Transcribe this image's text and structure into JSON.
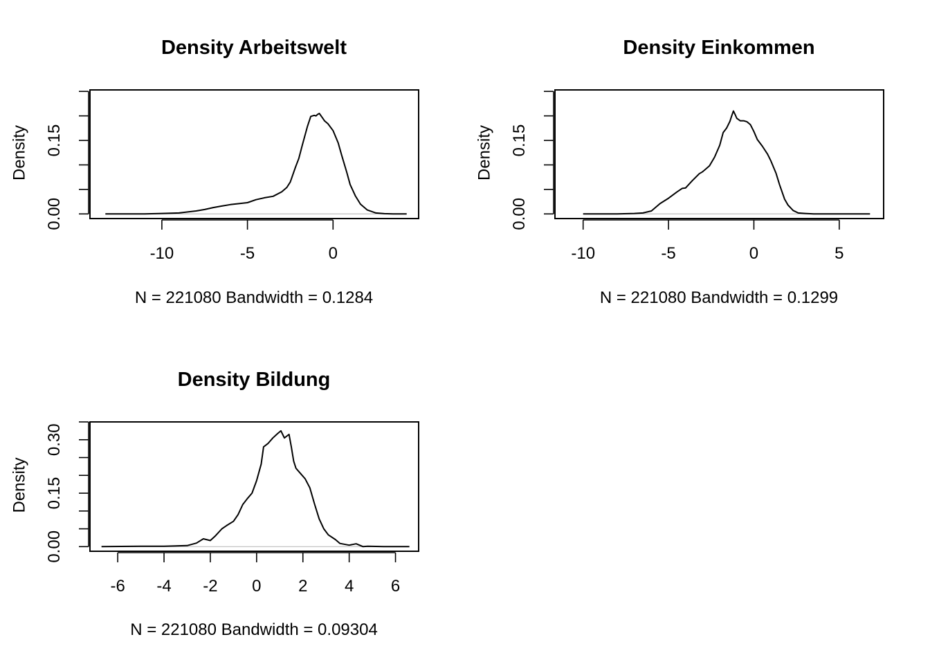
{
  "chart_data": [
    {
      "type": "line",
      "title": "Density Arbeitswelt",
      "ylabel": "Density",
      "subtitle": "N = 221080   Bandwidth = 0.1284",
      "xlim": [
        -14.2,
        5.0
      ],
      "ylim": [
        -0.0095,
        0.253
      ],
      "x_ticks": [
        -10,
        -5,
        0
      ],
      "y_ticks": [
        0.0,
        0.05,
        0.1,
        0.15,
        0.2,
        0.25
      ],
      "y_tick_labels": [
        "0.00",
        "0.15"
      ],
      "y_tick_label_values": [
        0.0,
        0.15
      ],
      "grid": false,
      "series": [
        {
          "x": [
            -13.3,
            -11.0,
            -10.0,
            -9.0,
            -8.0,
            -7.5,
            -7.0,
            -6.5,
            -6.0,
            -5.5,
            -5.0,
            -4.5,
            -4.0,
            -3.5,
            -3.0,
            -2.7,
            -2.5,
            -2.2,
            -2.0,
            -1.8,
            -1.5,
            -1.3,
            -1.1,
            -1.0,
            -0.9,
            -0.8,
            -0.7,
            -0.6,
            -0.5,
            -0.3,
            0.0,
            0.3,
            0.5,
            0.8,
            1.0,
            1.3,
            1.6,
            2.0,
            2.5,
            3.0,
            3.5,
            4.3
          ],
          "y": [
            0.0,
            0.0,
            0.001,
            0.002,
            0.006,
            0.009,
            0.013,
            0.016,
            0.019,
            0.021,
            0.023,
            0.029,
            0.033,
            0.036,
            0.045,
            0.054,
            0.065,
            0.095,
            0.113,
            0.14,
            0.178,
            0.199,
            0.201,
            0.2,
            0.203,
            0.205,
            0.2,
            0.195,
            0.19,
            0.184,
            0.17,
            0.145,
            0.12,
            0.085,
            0.06,
            0.037,
            0.02,
            0.008,
            0.002,
            0.0005,
            0.0,
            0.0
          ]
        }
      ]
    },
    {
      "type": "line",
      "title": "Density Einkommen",
      "ylabel": "Density",
      "subtitle": "N = 221080   Bandwidth = 0.1299",
      "xlim": [
        -11.65,
        7.6
      ],
      "ylim": [
        -0.0095,
        0.253
      ],
      "x_ticks": [
        -10,
        -5,
        0,
        5
      ],
      "y_ticks": [
        0.0,
        0.05,
        0.1,
        0.15,
        0.2,
        0.25
      ],
      "y_tick_labels": [
        "0.00",
        "0.15"
      ],
      "y_tick_label_values": [
        0.0,
        0.15
      ],
      "grid": false,
      "series": [
        {
          "x": [
            -10.0,
            -8.0,
            -7.0,
            -6.5,
            -6.0,
            -5.5,
            -5.0,
            -4.5,
            -4.2,
            -4.0,
            -3.6,
            -3.2,
            -3.0,
            -2.6,
            -2.3,
            -2.0,
            -1.8,
            -1.6,
            -1.4,
            -1.3,
            -1.2,
            -1.1,
            -1.0,
            -0.8,
            -0.6,
            -0.4,
            -0.2,
            0.0,
            0.2,
            0.5,
            0.8,
            1.0,
            1.3,
            1.5,
            1.8,
            2.0,
            2.3,
            2.6,
            3.0,
            3.5,
            4.0,
            5.0,
            6.8
          ],
          "y": [
            0.0,
            0.0,
            0.001,
            0.002,
            0.006,
            0.021,
            0.032,
            0.045,
            0.052,
            0.053,
            0.068,
            0.082,
            0.086,
            0.098,
            0.116,
            0.14,
            0.166,
            0.175,
            0.189,
            0.2,
            0.21,
            0.203,
            0.195,
            0.19,
            0.19,
            0.188,
            0.182,
            0.168,
            0.152,
            0.138,
            0.122,
            0.108,
            0.083,
            0.06,
            0.03,
            0.018,
            0.007,
            0.002,
            0.001,
            0.0,
            0.0,
            0.0,
            0.0
          ]
        }
      ]
    },
    {
      "type": "line",
      "title": "Density Bildung",
      "ylabel": "Density",
      "subtitle": "N = 221080   Bandwidth = 0.09304",
      "xlim": [
        -7.2,
        7.0
      ],
      "ylim": [
        -0.013,
        0.35
      ],
      "x_ticks": [
        -6,
        -4,
        -2,
        0,
        2,
        4,
        6
      ],
      "y_ticks": [
        0.0,
        0.05,
        0.1,
        0.15,
        0.2,
        0.25,
        0.3,
        0.35
      ],
      "y_tick_labels": [
        "0.00",
        "0.15",
        "0.30"
      ],
      "y_tick_label_values": [
        0.0,
        0.15,
        0.3
      ],
      "grid": false,
      "series": [
        {
          "x": [
            -6.7,
            -5.0,
            -4.0,
            -3.0,
            -2.6,
            -2.3,
            -2.0,
            -1.8,
            -1.5,
            -1.3,
            -1.0,
            -0.8,
            -0.6,
            -0.4,
            -0.2,
            0.0,
            0.2,
            0.3,
            0.5,
            0.7,
            0.9,
            1.05,
            1.2,
            1.3,
            1.4,
            1.5,
            1.6,
            1.7,
            1.9,
            2.1,
            2.3,
            2.5,
            2.7,
            2.9,
            3.1,
            3.4,
            3.6,
            4.0,
            4.3,
            4.6,
            4.8,
            5.5,
            6.6
          ],
          "y": [
            0.0,
            0.001,
            0.001,
            0.003,
            0.01,
            0.022,
            0.017,
            0.029,
            0.05,
            0.059,
            0.071,
            0.09,
            0.118,
            0.135,
            0.15,
            0.185,
            0.232,
            0.28,
            0.29,
            0.305,
            0.317,
            0.325,
            0.305,
            0.31,
            0.315,
            0.28,
            0.24,
            0.22,
            0.205,
            0.19,
            0.165,
            0.12,
            0.078,
            0.05,
            0.033,
            0.02,
            0.009,
            0.004,
            0.008,
            0.0,
            0.001,
            0.0,
            0.0
          ]
        }
      ]
    }
  ]
}
